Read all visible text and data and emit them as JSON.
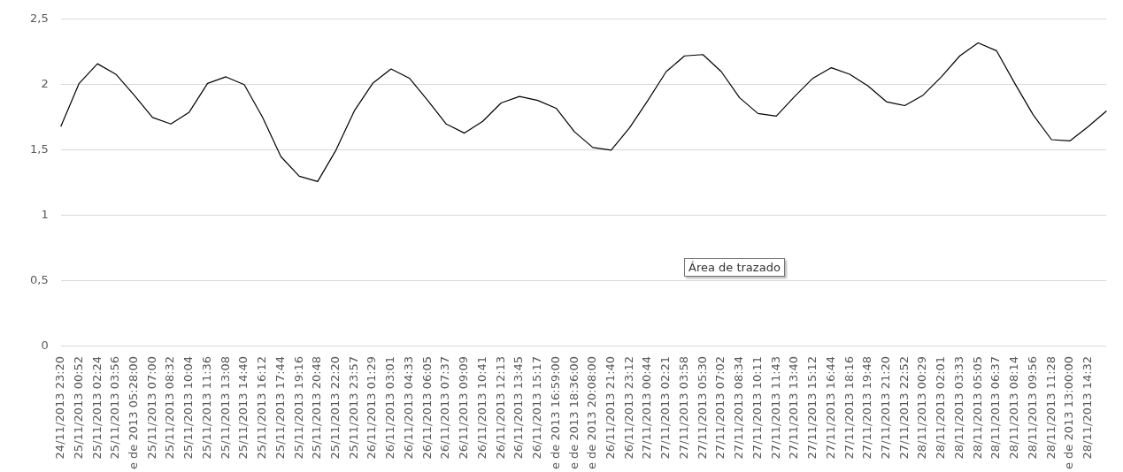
{
  "chart_data": {
    "type": "line",
    "categories": [
      "24/11/2013 23:20",
      "25/11/2013 00:52",
      "25/11/2013 02:24",
      "25/11/2013 03:56",
      "e de 2013 05:28:00",
      "25/11/2013 07:00",
      "25/11/2013 08:32",
      "25/11/2013 10:04",
      "25/11/2013 11:36",
      "25/11/2013 13:08",
      "25/11/2013 14:40",
      "25/11/2013 16:12",
      "25/11/2013 17:44",
      "25/11/2013 19:16",
      "25/11/2013 20:48",
      "25/11/2013 22:20",
      "25/11/2013 23:57",
      "26/11/2013 01:29",
      "26/11/2013 03:01",
      "26/11/2013 04:33",
      "26/11/2013 06:05",
      "26/11/2013 07:37",
      "26/11/2013 09:09",
      "26/11/2013 10:41",
      "26/11/2013 12:13",
      "26/11/2013 13:45",
      "26/11/2013 15:17",
      "e de 2013 16:59:00",
      "e de 2013 18:36:00",
      "e de 2013 20:08:00",
      "26/11/2013 21:40",
      "26/11/2013 23:12",
      "27/11/2013 00:44",
      "27/11/2013 02:21",
      "27/11/2013 03:58",
      "27/11/2013 05:30",
      "27/11/2013 07:02",
      "27/11/2013 08:34",
      "27/11/2013 10:11",
      "27/11/2013 11:43",
      "27/11/2013 13:40",
      "27/11/2013 15:12",
      "27/11/2013 16:44",
      "27/11/2013 18:16",
      "27/11/2013 19:48",
      "27/11/2013 21:20",
      "27/11/2013 22:52",
      "28/11/2013 00:29",
      "28/11/2013 02:01",
      "28/11/2013 03:33",
      "28/11/2013 05:05",
      "28/11/2013 06:37",
      "28/11/2013 08:14",
      "28/11/2013 09:56",
      "28/11/2013 11:28",
      "e de 2013 13:00:00",
      "28/11/2013 14:32",
      null
    ],
    "series": [
      {
        "color": "#000000",
        "values": [
          1.68,
          2.01,
          2.16,
          2.08,
          1.92,
          1.75,
          1.7,
          1.79,
          2.01,
          2.06,
          2.0,
          1.75,
          1.45,
          1.3,
          1.26,
          1.5,
          1.8,
          2.01,
          2.12,
          2.05,
          1.88,
          1.7,
          1.63,
          1.72,
          1.86,
          1.91,
          1.88,
          1.82,
          1.64,
          1.52,
          1.5,
          1.67,
          1.88,
          2.1,
          2.22,
          2.23,
          2.1,
          1.9,
          1.78,
          1.76,
          1.91,
          2.05,
          2.13,
          2.08,
          1.99,
          1.87,
          1.84,
          1.92,
          2.06,
          2.22,
          2.32,
          2.26,
          2.01,
          1.77,
          1.58,
          1.57,
          1.68,
          1.8
        ]
      }
    ],
    "ylim": [
      0,
      2.5
    ],
    "yticks": [
      0,
      {
        "value": 0.5,
        "label": "0,5"
      },
      1,
      {
        "value": 1.5,
        "label": "1,5"
      },
      2,
      {
        "value": 2.5,
        "label": "2,5"
      }
    ],
    "grid": "y",
    "legend": false,
    "marker": "none",
    "line_style": "solid",
    "annotations": [
      "Área de trazado"
    ]
  }
}
